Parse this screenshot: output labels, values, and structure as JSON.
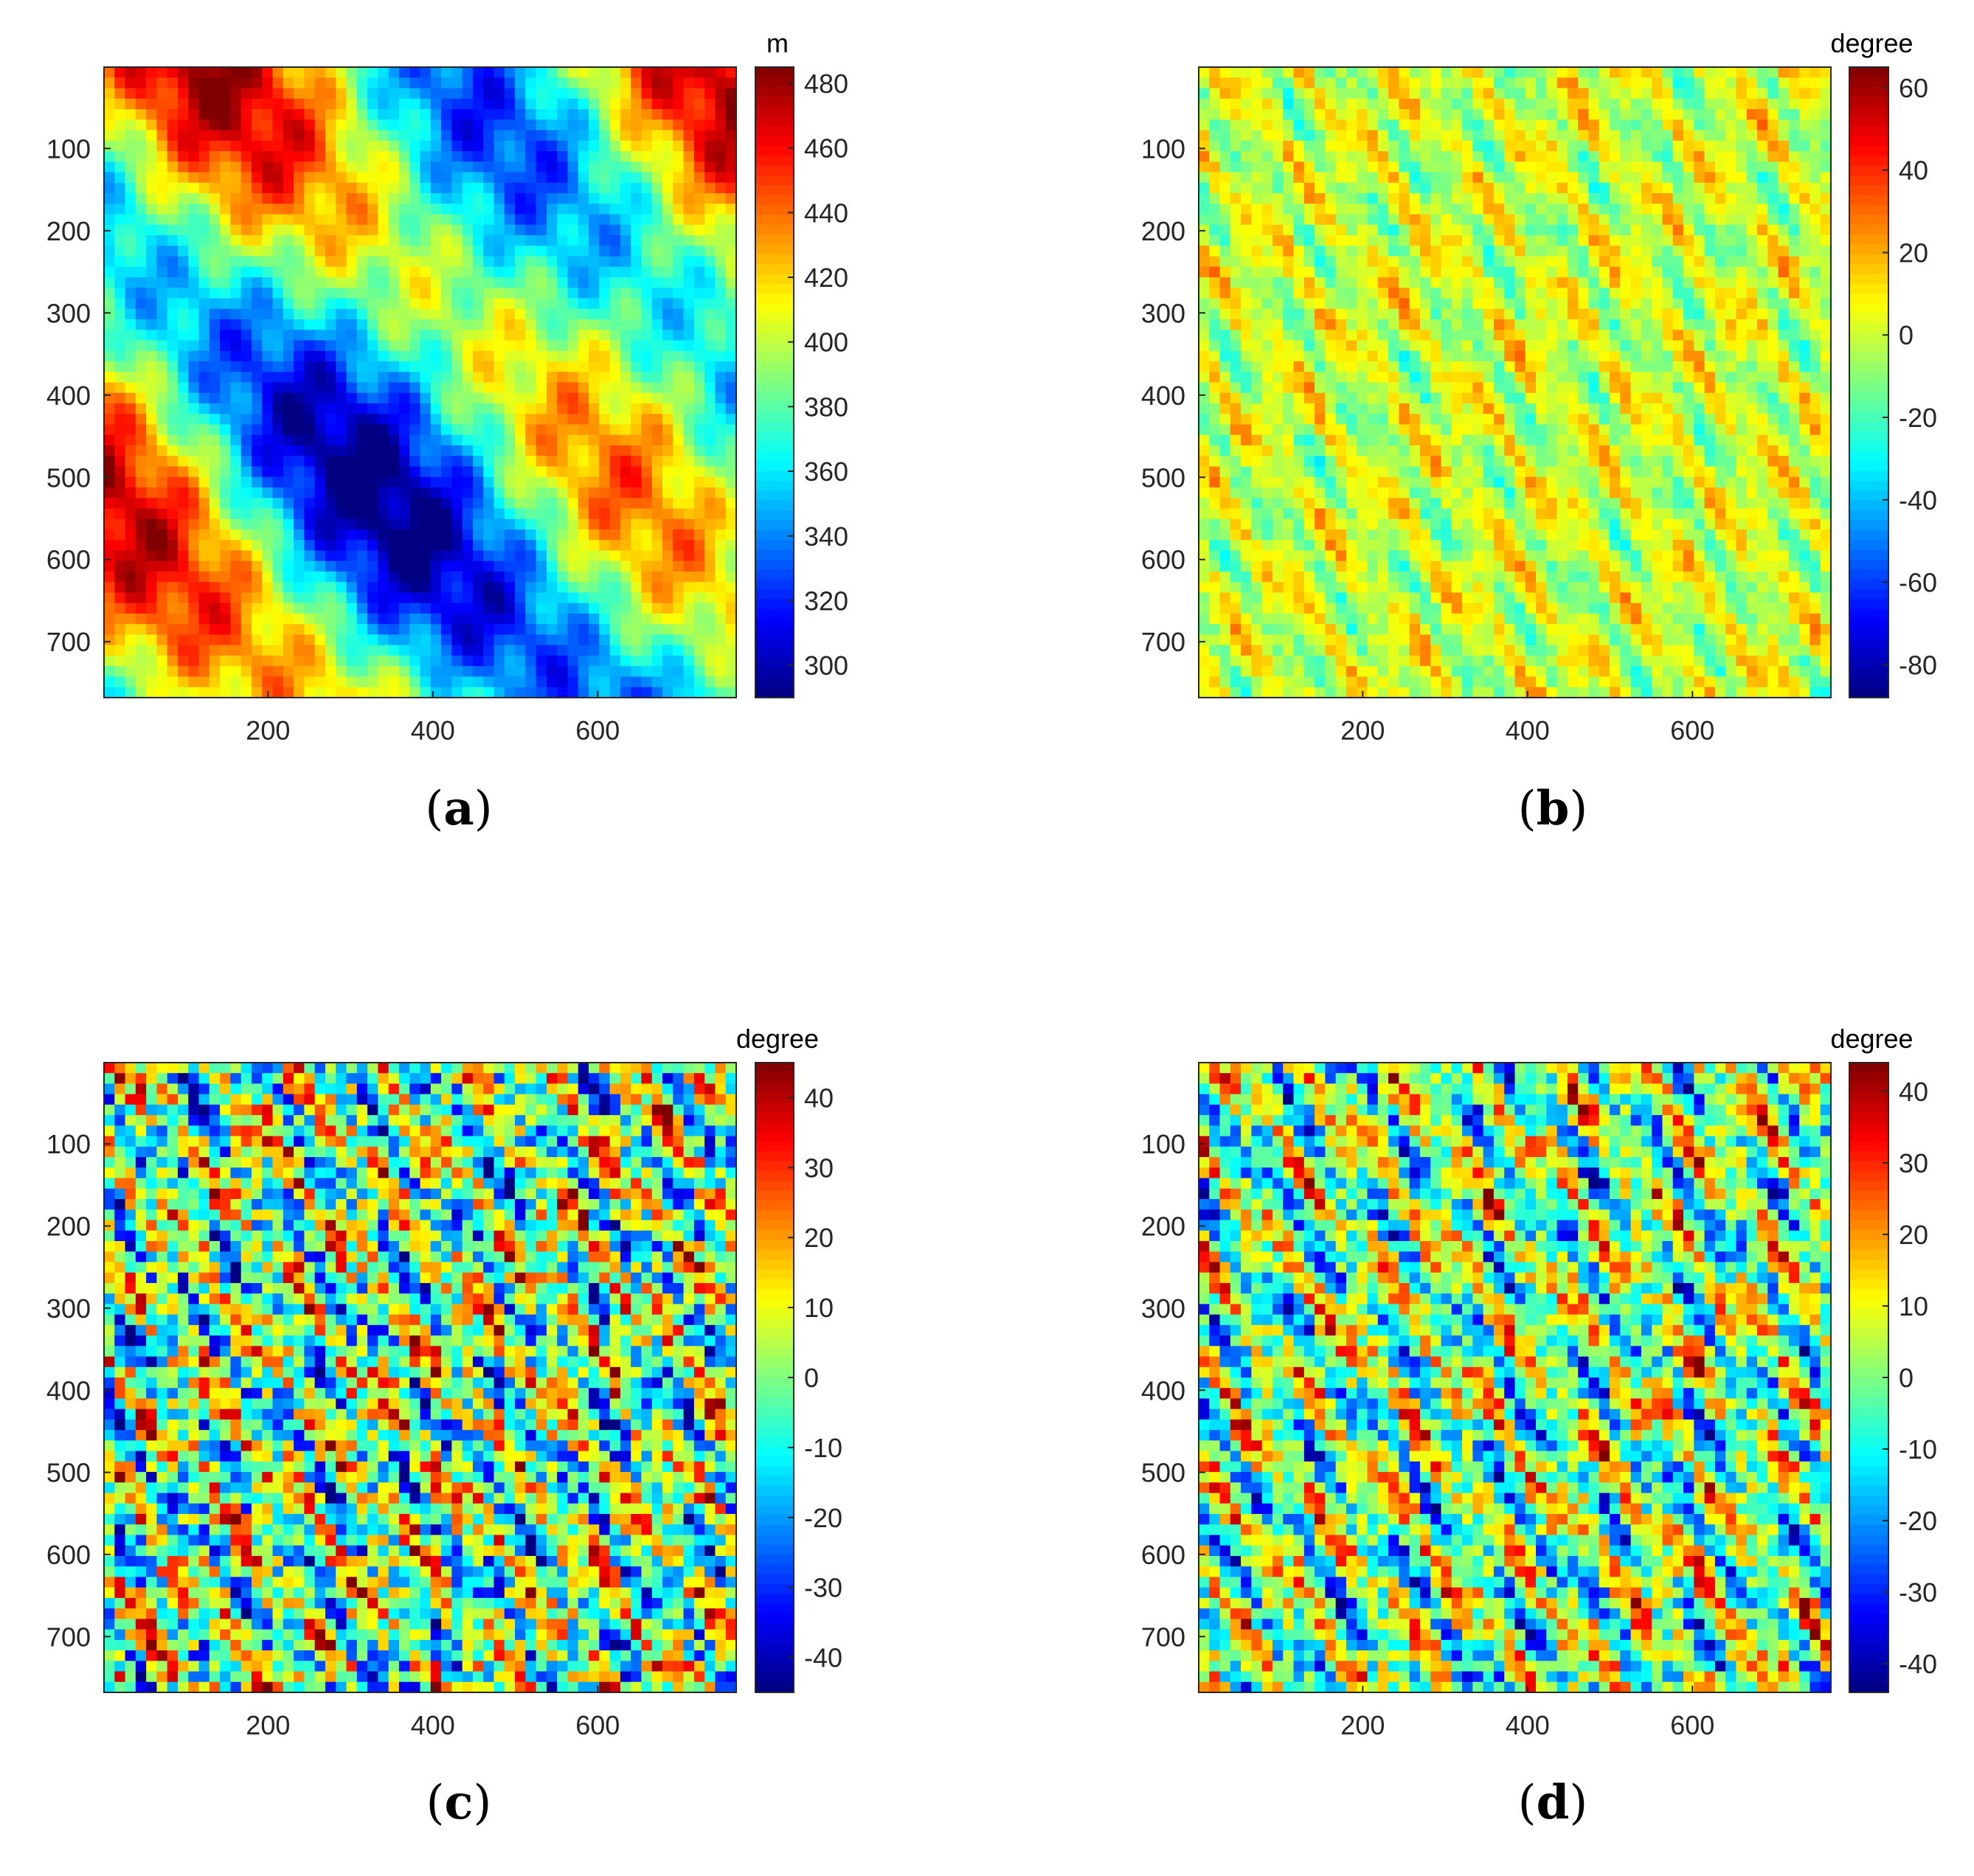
{
  "chart_data": [
    {
      "type": "heatmap",
      "caption": "a",
      "colormap": "jet",
      "colorbar_label": "m",
      "color_range": [
        290,
        485
      ],
      "colorbar_ticks": [
        480,
        460,
        440,
        420,
        400,
        380,
        360,
        340,
        320,
        300
      ],
      "x_range": [
        1,
        768
      ],
      "y_range": [
        1,
        768
      ],
      "x_ticks": [
        200,
        400,
        600
      ],
      "y_ticks": [
        100,
        200,
        300,
        400,
        500,
        600,
        700
      ],
      "y_reversed": true
    },
    {
      "type": "heatmap",
      "caption": "b",
      "colormap": "jet",
      "colorbar_label": "degree",
      "color_range": [
        -88,
        65
      ],
      "colorbar_ticks": [
        60,
        40,
        20,
        0,
        -20,
        -40,
        -60,
        -80
      ],
      "x_range": [
        1,
        768
      ],
      "y_range": [
        1,
        768
      ],
      "x_ticks": [
        200,
        400,
        600
      ],
      "y_ticks": [
        100,
        200,
        300,
        400,
        500,
        600,
        700
      ],
      "y_reversed": true
    },
    {
      "type": "heatmap",
      "caption": "c",
      "colormap": "jet",
      "colorbar_label": "degree",
      "color_range": [
        -45,
        45
      ],
      "colorbar_ticks": [
        40,
        30,
        20,
        10,
        0,
        -10,
        -20,
        -30,
        -40
      ],
      "x_range": [
        1,
        768
      ],
      "y_range": [
        1,
        768
      ],
      "x_ticks": [
        200,
        400,
        600
      ],
      "y_ticks": [
        100,
        200,
        300,
        400,
        500,
        600,
        700
      ],
      "y_reversed": true
    },
    {
      "type": "heatmap",
      "caption": "d",
      "colormap": "jet",
      "colorbar_label": "degree",
      "color_range": [
        -44,
        44
      ],
      "colorbar_ticks": [
        40,
        30,
        20,
        10,
        0,
        -10,
        -20,
        -30,
        -40
      ],
      "x_range": [
        1,
        768
      ],
      "y_range": [
        1,
        768
      ],
      "x_ticks": [
        200,
        400,
        600
      ],
      "y_ticks": [
        100,
        200,
        300,
        400,
        500,
        600,
        700
      ],
      "y_reversed": true
    }
  ]
}
